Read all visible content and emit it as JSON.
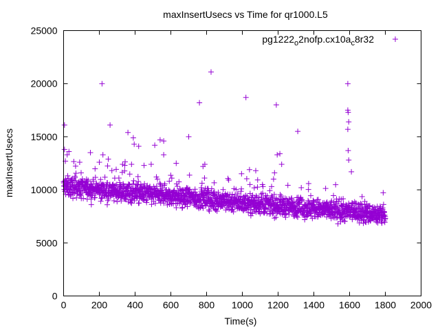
{
  "chart_data": {
    "type": "scatter",
    "title": "maxInsertUsecs vs Time for qr1000.L5",
    "xlabel": "Time(s)",
    "ylabel": "maxInsertUsecs",
    "xlim": [
      0,
      2000
    ],
    "ylim": [
      0,
      25000
    ],
    "xticks": [
      "0",
      "200",
      "400",
      "600",
      "800",
      "1000",
      "1200",
      "1400",
      "1600",
      "1800",
      "2000"
    ],
    "yticks": [
      "0",
      "5000",
      "10000",
      "15000",
      "20000",
      "25000"
    ],
    "grid": false,
    "legend_position": "top-right",
    "marker": "+",
    "color": "#9400d3",
    "series": [
      {
        "name": "pg1222_o2nofp.cx10a_c8r32",
        "name_parts": {
          "a": "pg1222",
          "sub1": "o",
          "b": "2nofp.cx10a",
          "sub2": "c",
          "c": "8r32"
        },
        "trend": {
          "x": [
            0,
            1800
          ],
          "y": [
            10300,
            7600
          ]
        },
        "noise_typical": 650,
        "count_approx": 1800,
        "outliers": [
          {
            "x": 5,
            "y": 16100
          },
          {
            "x": 5,
            "y": 13800
          },
          {
            "x": 10,
            "y": 12700
          },
          {
            "x": 20,
            "y": 13300
          },
          {
            "x": 30,
            "y": 13600
          },
          {
            "x": 90,
            "y": 12600
          },
          {
            "x": 150,
            "y": 13500
          },
          {
            "x": 200,
            "y": 12600
          },
          {
            "x": 215,
            "y": 20000
          },
          {
            "x": 220,
            "y": 13300
          },
          {
            "x": 250,
            "y": 12900
          },
          {
            "x": 260,
            "y": 16100
          },
          {
            "x": 330,
            "y": 12400
          },
          {
            "x": 360,
            "y": 15400
          },
          {
            "x": 380,
            "y": 12400
          },
          {
            "x": 390,
            "y": 14900
          },
          {
            "x": 395,
            "y": 14300
          },
          {
            "x": 420,
            "y": 14100
          },
          {
            "x": 450,
            "y": 12300
          },
          {
            "x": 490,
            "y": 12400
          },
          {
            "x": 510,
            "y": 14200
          },
          {
            "x": 540,
            "y": 14700
          },
          {
            "x": 560,
            "y": 14600
          },
          {
            "x": 560,
            "y": 13300
          },
          {
            "x": 630,
            "y": 12500
          },
          {
            "x": 700,
            "y": 15000
          },
          {
            "x": 760,
            "y": 18200
          },
          {
            "x": 780,
            "y": 12200
          },
          {
            "x": 790,
            "y": 12400
          },
          {
            "x": 825,
            "y": 21100
          },
          {
            "x": 1020,
            "y": 18700
          },
          {
            "x": 1040,
            "y": 11900
          },
          {
            "x": 1075,
            "y": 11800
          },
          {
            "x": 1180,
            "y": 11600
          },
          {
            "x": 1190,
            "y": 18000
          },
          {
            "x": 1195,
            "y": 13300
          },
          {
            "x": 1210,
            "y": 13400
          },
          {
            "x": 1220,
            "y": 12400
          },
          {
            "x": 1310,
            "y": 15500
          },
          {
            "x": 1590,
            "y": 20000
          },
          {
            "x": 1590,
            "y": 17500
          },
          {
            "x": 1592,
            "y": 17300
          },
          {
            "x": 1595,
            "y": 16400
          },
          {
            "x": 1590,
            "y": 15700
          },
          {
            "x": 1592,
            "y": 13700
          },
          {
            "x": 1595,
            "y": 12800
          },
          {
            "x": 1610,
            "y": 11700
          }
        ]
      }
    ]
  }
}
